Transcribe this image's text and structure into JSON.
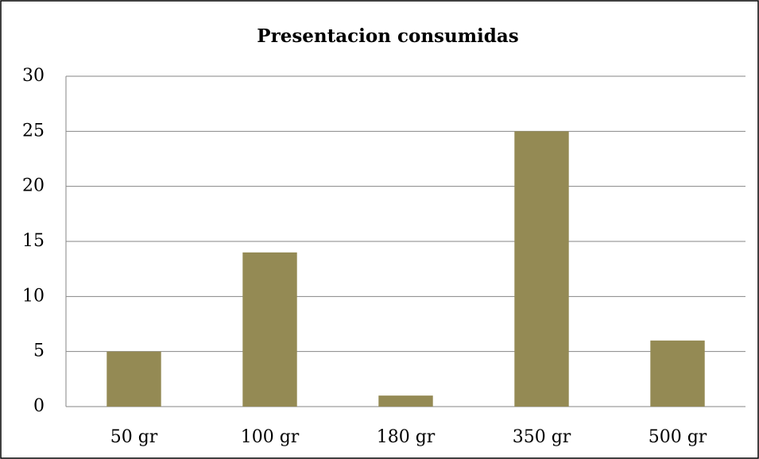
{
  "chart_data": {
    "type": "bar",
    "title": "Presentacion consumidas",
    "categories": [
      "50 gr",
      "100 gr",
      "180 gr",
      "350 gr",
      "500 gr"
    ],
    "values": [
      5,
      14,
      1,
      25,
      6
    ],
    "color": "#948a54",
    "ylim": [
      0,
      30
    ],
    "yticks": [
      0,
      5,
      10,
      15,
      20,
      25,
      30
    ],
    "grid": true
  }
}
